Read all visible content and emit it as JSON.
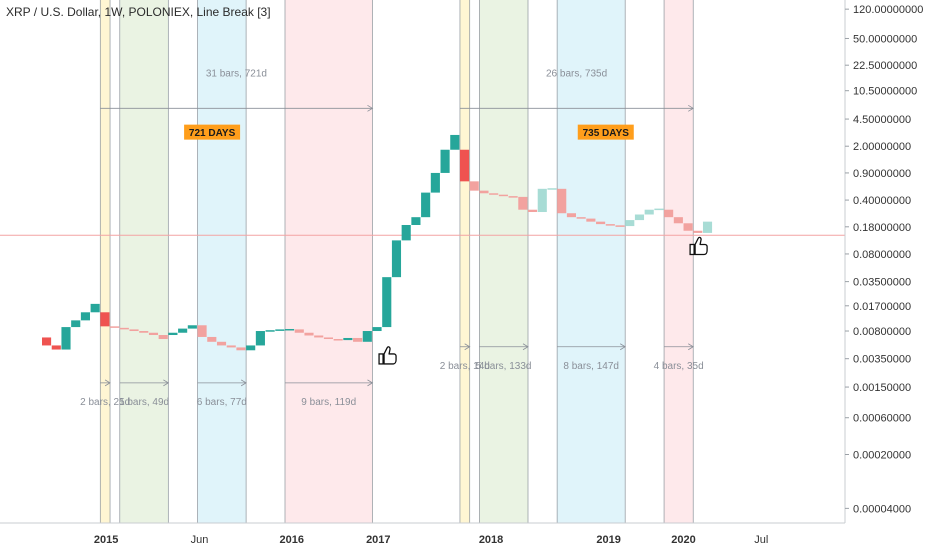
{
  "chart_data": {
    "type": "line_break",
    "title": "XRP / U.S. Dollar, 1W, POLONIEX, Line Break [3]",
    "y_scale": "log",
    "ylim": [
      3e-05,
      140
    ],
    "y_ticks": [
      "120.00000000",
      "50.00000000",
      "22.50000000",
      "10.50000000",
      "4.50000000",
      "2.00000000",
      "0.90000000",
      "0.40000000",
      "0.18000000",
      "0.08000000",
      "0.03500000",
      "0.01700000",
      "0.00800000",
      "0.00350000",
      "0.00150000",
      "0.00060000",
      "0.00020000",
      "0.00004000"
    ],
    "x_ticks": [
      "2015",
      "Jun",
      "2016",
      "2017",
      "2018",
      "2019",
      "2020",
      "Jul"
    ],
    "bricks": [
      {
        "dir": "down",
        "top": 0.0066,
        "bottom": 0.0052
      },
      {
        "dir": "down",
        "top": 0.0052,
        "bottom": 0.0046
      },
      {
        "dir": "up",
        "top": 0.009,
        "bottom": 0.0046
      },
      {
        "dir": "up",
        "top": 0.011,
        "bottom": 0.009
      },
      {
        "dir": "up",
        "top": 0.014,
        "bottom": 0.011
      },
      {
        "dir": "up",
        "top": 0.018,
        "bottom": 0.014
      },
      {
        "dir": "down",
        "top": 0.014,
        "bottom": 0.0092
      },
      {
        "dir": "down",
        "top": 0.0092,
        "bottom": 0.0088
      },
      {
        "dir": "down",
        "top": 0.0088,
        "bottom": 0.0084
      },
      {
        "dir": "down",
        "top": 0.0084,
        "bottom": 0.008
      },
      {
        "dir": "down",
        "top": 0.008,
        "bottom": 0.0076
      },
      {
        "dir": "down",
        "top": 0.0076,
        "bottom": 0.0071
      },
      {
        "dir": "down",
        "top": 0.0071,
        "bottom": 0.0063
      },
      {
        "dir": "up",
        "top": 0.0076,
        "bottom": 0.0071
      },
      {
        "dir": "up",
        "top": 0.0086,
        "bottom": 0.0076
      },
      {
        "dir": "up",
        "top": 0.0095,
        "bottom": 0.0086
      },
      {
        "dir": "down",
        "top": 0.0095,
        "bottom": 0.0067
      },
      {
        "dir": "down",
        "top": 0.0067,
        "bottom": 0.0058
      },
      {
        "dir": "down",
        "top": 0.0058,
        "bottom": 0.0052
      },
      {
        "dir": "down",
        "top": 0.0052,
        "bottom": 0.0049
      },
      {
        "dir": "down",
        "top": 0.0049,
        "bottom": 0.0045
      },
      {
        "dir": "up",
        "top": 0.0052,
        "bottom": 0.0045
      },
      {
        "dir": "up",
        "top": 0.008,
        "bottom": 0.0052
      },
      {
        "dir": "up",
        "top": 0.0082,
        "bottom": 0.008
      },
      {
        "dir": "up",
        "top": 0.0084,
        "bottom": 0.0082
      },
      {
        "dir": "up",
        "top": 0.0085,
        "bottom": 0.0084
      },
      {
        "dir": "down",
        "top": 0.0084,
        "bottom": 0.0076
      },
      {
        "dir": "down",
        "top": 0.0076,
        "bottom": 0.007
      },
      {
        "dir": "down",
        "top": 0.007,
        "bottom": 0.0066
      },
      {
        "dir": "down",
        "top": 0.0066,
        "bottom": 0.0063
      },
      {
        "dir": "down",
        "top": 0.0063,
        "bottom": 0.0061
      },
      {
        "dir": "up",
        "top": 0.0065,
        "bottom": 0.0061
      },
      {
        "dir": "down",
        "top": 0.0065,
        "bottom": 0.0058
      },
      {
        "dir": "up",
        "top": 0.008,
        "bottom": 0.0058
      },
      {
        "dir": "up",
        "top": 0.009,
        "bottom": 0.008
      },
      {
        "dir": "up",
        "top": 0.04,
        "bottom": 0.009
      },
      {
        "dir": "up",
        "top": 0.12,
        "bottom": 0.04
      },
      {
        "dir": "up",
        "top": 0.19,
        "bottom": 0.12
      },
      {
        "dir": "up",
        "top": 0.24,
        "bottom": 0.19
      },
      {
        "dir": "up",
        "top": 0.5,
        "bottom": 0.24
      },
      {
        "dir": "up",
        "top": 0.9,
        "bottom": 0.5
      },
      {
        "dir": "up",
        "top": 1.8,
        "bottom": 0.9
      },
      {
        "dir": "up",
        "top": 2.8,
        "bottom": 1.8
      },
      {
        "dir": "down",
        "top": 1.8,
        "bottom": 0.7
      },
      {
        "dir": "down",
        "top": 0.7,
        "bottom": 0.53
      },
      {
        "dir": "down",
        "top": 0.53,
        "bottom": 0.49
      },
      {
        "dir": "down",
        "top": 0.49,
        "bottom": 0.47
      },
      {
        "dir": "down",
        "top": 0.47,
        "bottom": 0.45
      },
      {
        "dir": "down",
        "top": 0.45,
        "bottom": 0.44
      },
      {
        "dir": "down",
        "top": 0.44,
        "bottom": 0.3
      },
      {
        "dir": "down",
        "top": 0.3,
        "bottom": 0.28
      },
      {
        "dir": "up",
        "top": 0.56,
        "bottom": 0.28
      },
      {
        "dir": "up",
        "top": 0.57,
        "bottom": 0.56
      },
      {
        "dir": "down",
        "top": 0.56,
        "bottom": 0.27
      },
      {
        "dir": "down",
        "top": 0.27,
        "bottom": 0.24
      },
      {
        "dir": "down",
        "top": 0.24,
        "bottom": 0.23
      },
      {
        "dir": "down",
        "top": 0.23,
        "bottom": 0.21
      },
      {
        "dir": "down",
        "top": 0.21,
        "bottom": 0.195
      },
      {
        "dir": "down",
        "top": 0.195,
        "bottom": 0.188
      },
      {
        "dir": "down",
        "top": 0.188,
        "bottom": 0.184
      },
      {
        "dir": "up",
        "top": 0.22,
        "bottom": 0.184
      },
      {
        "dir": "up",
        "top": 0.26,
        "bottom": 0.22
      },
      {
        "dir": "up",
        "top": 0.3,
        "bottom": 0.26
      },
      {
        "dir": "up",
        "top": 0.31,
        "bottom": 0.3
      },
      {
        "dir": "down",
        "top": 0.3,
        "bottom": 0.24
      },
      {
        "dir": "down",
        "top": 0.24,
        "bottom": 0.2
      },
      {
        "dir": "down",
        "top": 0.2,
        "bottom": 0.16
      },
      {
        "dir": "down",
        "top": 0.16,
        "bottom": 0.15
      },
      {
        "dir": "up",
        "top": 0.21,
        "bottom": 0.15
      }
    ],
    "shaded_ranges": [
      {
        "color": "#fff3c4",
        "from_bar": 6,
        "to_bar": 7
      },
      {
        "color": "#e3efd9",
        "from_bar": 8,
        "to_bar": 13
      },
      {
        "color": "#d6f0f8",
        "from_bar": 16,
        "to_bar": 21
      },
      {
        "color": "#fde2e4",
        "from_bar": 25,
        "to_bar": 34
      },
      {
        "color": "#fff3c4",
        "from_bar": 43,
        "to_bar": 44
      },
      {
        "color": "#e3efd9",
        "from_bar": 45,
        "to_bar": 50
      },
      {
        "color": "#d6f0f8",
        "from_bar": 53,
        "to_bar": 60
      },
      {
        "color": "#fde2e4",
        "from_bar": 64,
        "to_bar": 67
      }
    ],
    "horizontal_line": {
      "price": 0.14,
      "color": "#f3a3a3"
    },
    "measurements": [
      {
        "label": "31 bars, 721d",
        "from_bar": 6,
        "to_bar": 34,
        "price": 6.2
      },
      {
        "label": "26 bars, 735d",
        "from_bar": 43,
        "to_bar": 67,
        "price": 6.2
      },
      {
        "label": "2 bars, 21d",
        "from_bar": 6,
        "to_bar": 7,
        "price": 0.0017
      },
      {
        "label": "5 bars, 49d",
        "from_bar": 8,
        "to_bar": 13,
        "price": 0.0017
      },
      {
        "label": "6 bars, 77d",
        "from_bar": 16,
        "to_bar": 21,
        "price": 0.0017
      },
      {
        "label": "9 bars, 119d",
        "from_bar": 25,
        "to_bar": 34,
        "price": 0.0017
      },
      {
        "label": "2 bars, 14d",
        "from_bar": 43,
        "to_bar": 44,
        "price": 0.005
      },
      {
        "label": "5 bars, 133d",
        "from_bar": 45,
        "to_bar": 50,
        "price": 0.005
      },
      {
        "label": "8 bars, 147d",
        "from_bar": 53,
        "to_bar": 60,
        "price": 0.005
      },
      {
        "label": "4 bars, 35d",
        "from_bar": 64,
        "to_bar": 67,
        "price": 0.005
      }
    ],
    "annotations": [
      {
        "text": "721 DAYS",
        "bar": 17.5,
        "price": 3.0,
        "bg": "#ff9e1b"
      },
      {
        "text": "735 DAYS",
        "bar": 58.0,
        "price": 3.0,
        "bg": "#ff9e1b"
      }
    ],
    "markers": [
      {
        "icon": "thumbs-up-icon",
        "bar": 35.5,
        "price": 0.0038
      },
      {
        "icon": "thumbs-up-icon",
        "bar": 67.5,
        "price": 0.1
      }
    ],
    "colors": {
      "up": "#26a69a",
      "down": "#ef5350",
      "up_faded": "#a8dcd5",
      "down_faded": "#f2a29f"
    }
  }
}
